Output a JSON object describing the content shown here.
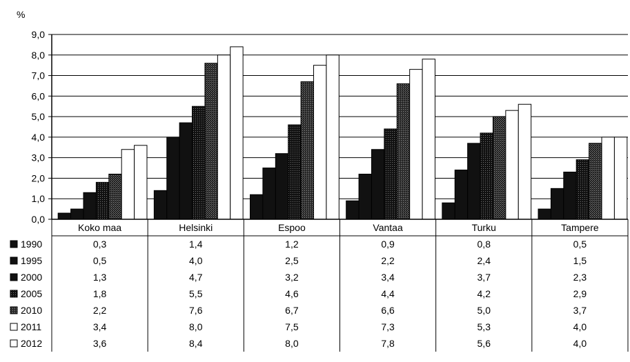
{
  "chart_data": {
    "type": "bar",
    "ylabel": "%",
    "ylim": [
      0,
      9
    ],
    "ytick_labels": [
      "0,0",
      "1,0",
      "2,0",
      "3,0",
      "4,0",
      "5,0",
      "6,0",
      "7,0",
      "8,0",
      "9,0"
    ],
    "grid": true,
    "categories": [
      "Koko maa",
      "Helsinki",
      "Espoo",
      "Vantaa",
      "Turku",
      "Tampere"
    ],
    "series": [
      {
        "name": "1990",
        "values": [
          0.3,
          1.4,
          1.2,
          0.9,
          0.8,
          0.5
        ],
        "labels": [
          "0,3",
          "1,4",
          "1,2",
          "0,9",
          "0,8",
          "0,5"
        ],
        "color": "#111111",
        "pattern": "solid"
      },
      {
        "name": "1995",
        "values": [
          0.5,
          4.0,
          2.5,
          2.2,
          2.4,
          1.5
        ],
        "labels": [
          "0,5",
          "4,0",
          "2,5",
          "2,2",
          "2,4",
          "1,5"
        ],
        "color": "#111111",
        "pattern": "solid"
      },
      {
        "name": "2000",
        "values": [
          1.3,
          4.7,
          3.2,
          3.4,
          3.7,
          2.3
        ],
        "labels": [
          "1,3",
          "4,7",
          "3,2",
          "3,4",
          "3,7",
          "2,3"
        ],
        "color": "#111111",
        "pattern": "solid"
      },
      {
        "name": "2005",
        "values": [
          1.8,
          5.5,
          4.6,
          4.4,
          4.2,
          2.9
        ],
        "labels": [
          "1,8",
          "5,5",
          "4,6",
          "4,4",
          "4,2",
          "2,9"
        ],
        "color": "#2a2a2a",
        "pattern": "dotted-dark"
      },
      {
        "name": "2010",
        "values": [
          2.2,
          7.6,
          6.7,
          6.6,
          5.0,
          3.7
        ],
        "labels": [
          "2,2",
          "7,6",
          "6,7",
          "6,6",
          "5,0",
          "3,7"
        ],
        "color": "#3a3a3a",
        "pattern": "dotted-darker"
      },
      {
        "name": "2011",
        "values": [
          3.4,
          8.0,
          7.5,
          7.3,
          5.3,
          4.0
        ],
        "labels": [
          "3,4",
          "8,0",
          "7,5",
          "7,3",
          "5,3",
          "4,0"
        ],
        "color": "#ffffff",
        "pattern": "open"
      },
      {
        "name": "2012",
        "values": [
          3.6,
          8.4,
          8.0,
          7.8,
          5.6,
          4.0
        ],
        "labels": [
          "3,6",
          "8,4",
          "8,0",
          "7,8",
          "5,6",
          "4,0"
        ],
        "color": "#ffffff",
        "pattern": "open"
      }
    ]
  }
}
